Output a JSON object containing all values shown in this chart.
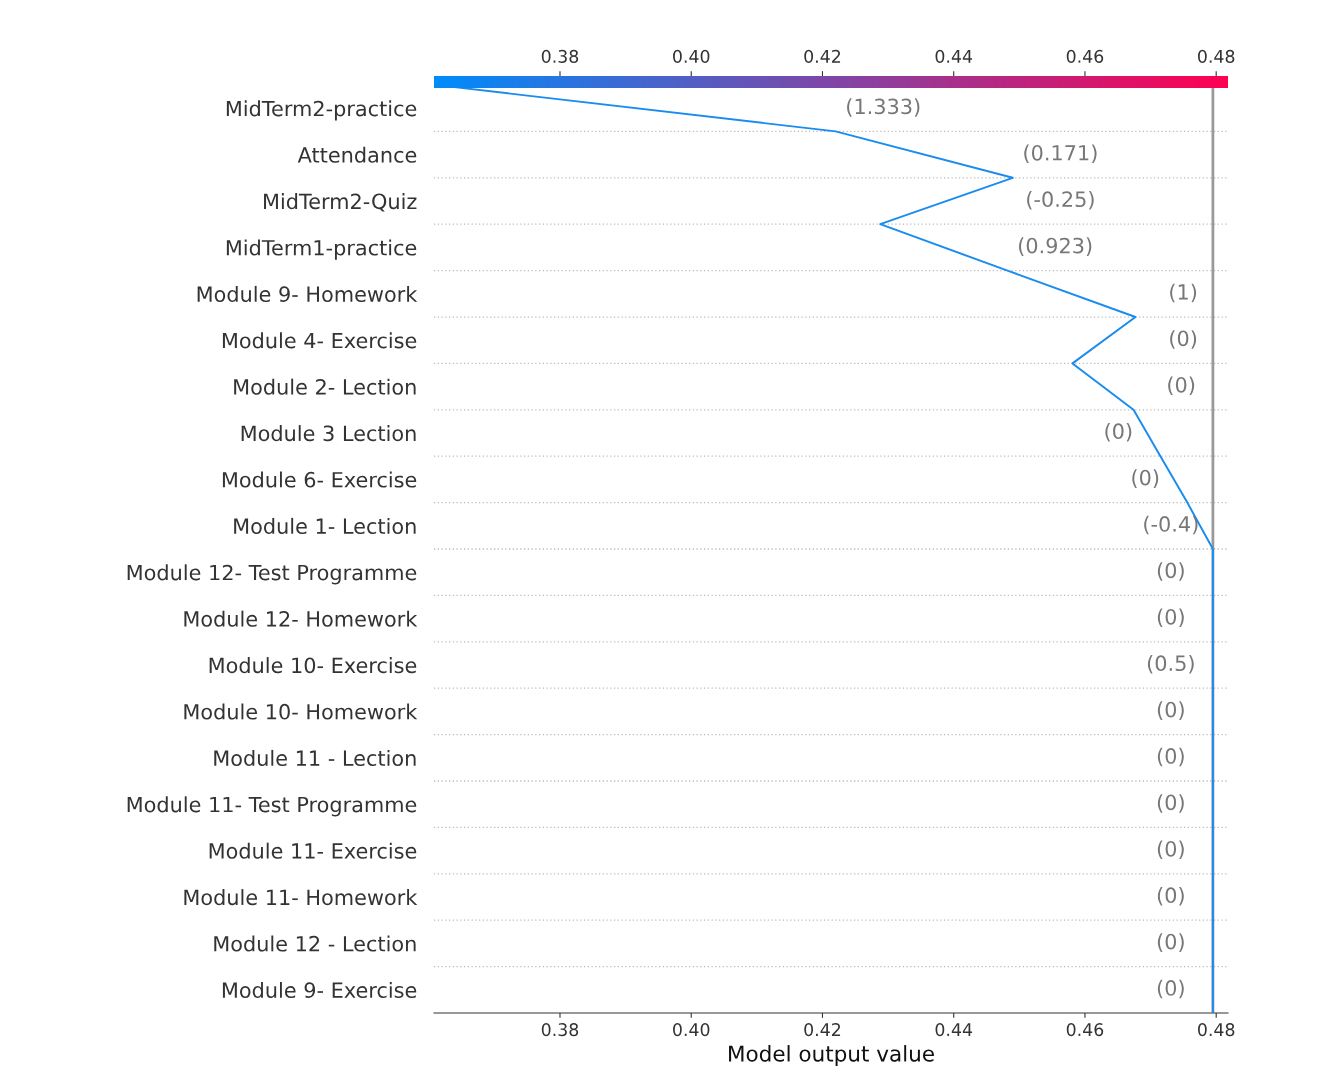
{
  "chart_data": {
    "type": "line",
    "orientation": "horizontal",
    "xlabel": "Model output value",
    "categories": [
      null,
      "MidTerm2-practice",
      "Attendance",
      "MidTerm2-Quiz",
      "MidTerm1-practice",
      "Module 9- Homework",
      "Module 4- Exercise",
      "Module 2- Lection",
      "Module 3 Lection",
      "Module 6- Exercise",
      "Module 1- Lection",
      "Module 12- Test Programme",
      "Module 12- Homework",
      "Module 10- Exercise",
      "Module 10- Homework",
      "Module 11 - Lection",
      "Module 11- Test Programme",
      "Module 11- Exercise",
      "Module 11- Homework",
      "Module 12 - Lection",
      "Module 9- Exercise"
    ],
    "series": [
      {
        "color": "#1a8cf0",
        "values": [
          0.3611,
          0.422,
          0.449,
          0.4288,
          0.4482,
          0.4677,
          0.4581,
          0.4674,
          0.4715,
          0.4756,
          0.4795,
          0.4795,
          0.4795,
          0.4795,
          0.4795,
          0.4795,
          0.4795,
          0.4795,
          0.4795,
          0.4795,
          0.4795
        ]
      }
    ],
    "xlim": [
      0.3608,
      0.4818
    ],
    "xticks": [
      0.38,
      {
        "value": 0.4,
        "label": "0.40"
      },
      0.42,
      0.44,
      0.46,
      0.48
    ],
    "clim": [
      0.3608,
      0.4818
    ],
    "cticks": [
      0.38,
      {
        "value": 0.4,
        "label": "0.40"
      },
      0.42,
      0.44,
      0.46,
      0.48
    ],
    "colors": [
      "#008bfb",
      "#ff0051"
    ],
    "ref_lines": [
      {
        "axis": "x",
        "value": 0.4795,
        "label": null,
        "color": "#999999"
      }
    ],
    "grid": "y",
    "annotations": [
      "(1.333)",
      "(0.171)",
      "(-0.25)",
      "(0.923)",
      "(1)",
      "(0)",
      "(0)",
      "(0)",
      "(0)",
      "(-0.4)",
      "(0)",
      "(0)",
      "(0.5)",
      "(0)",
      "(0)",
      "(0)",
      "(0)",
      "(0)",
      "(0)",
      "(0)"
    ]
  }
}
